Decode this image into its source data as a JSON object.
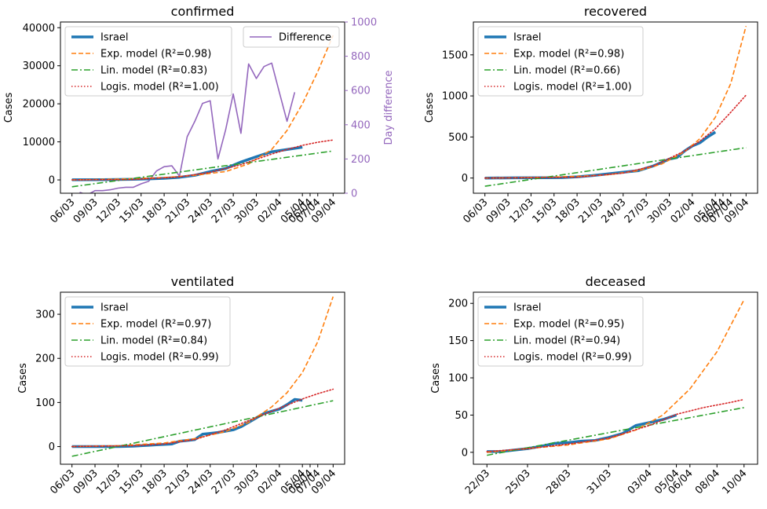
{
  "colors": {
    "israel": "#1f77b4",
    "exp": "#ff7f0e",
    "lin": "#2ca02c",
    "logis": "#d62728",
    "difference": "#9467bd"
  },
  "chart_data": [
    {
      "type": "line",
      "title": "confirmed",
      "xlabel": "",
      "ylabel": "Cases",
      "y2label": "Day difference",
      "xlim": [
        -1.5,
        35.5
      ],
      "ylim": [
        -3500,
        41500
      ],
      "y2lim": [
        0,
        1000
      ],
      "yticks": [
        0,
        10000,
        20000,
        30000,
        40000
      ],
      "y2ticks": [
        0,
        200,
        400,
        600,
        800,
        1000
      ],
      "xticks": [
        {
          "x": 0,
          "label": "06/03"
        },
        {
          "x": 3,
          "label": "09/03"
        },
        {
          "x": 6,
          "label": "12/03"
        },
        {
          "x": 9,
          "label": "15/03"
        },
        {
          "x": 12,
          "label": "18/03"
        },
        {
          "x": 15,
          "label": "21/03"
        },
        {
          "x": 18,
          "label": "24/03"
        },
        {
          "x": 21,
          "label": "27/03"
        },
        {
          "x": 24,
          "label": "30/03"
        },
        {
          "x": 27,
          "label": "02/04"
        },
        {
          "x": 30,
          "label": "05/04"
        },
        {
          "x": 31,
          "label": "06/04"
        },
        {
          "x": 32,
          "label": "07/04"
        },
        {
          "x": 34,
          "label": "09/04"
        }
      ],
      "legend_entries": [
        {
          "label": "Israel",
          "style": "israel"
        },
        {
          "label": "Exp. model (R²=0.98)",
          "style": "exp"
        },
        {
          "label": "Lin. model (R²=0.83)",
          "style": "lin"
        },
        {
          "label": "Logis. model (R²=1.00)",
          "style": "logis"
        }
      ],
      "legend_placement": "top-left",
      "legend2_entries": [
        {
          "label": "Difference",
          "style": "difference"
        }
      ],
      "legend2_placement": "top-right",
      "series": [
        {
          "name": "Israel",
          "style": "israel",
          "x": [
            0,
            4,
            8,
            10,
            12,
            14,
            16,
            18,
            20,
            22,
            24,
            26,
            28,
            30
          ],
          "y": [
            20,
            60,
            150,
            250,
            430,
            700,
            1200,
            2200,
            3000,
            4700,
            6100,
            7400,
            8000,
            8600
          ]
        },
        {
          "name": "Exp. model (R²=0.98)",
          "style": "exp",
          "x": [
            0,
            6,
            12,
            16,
            20,
            23,
            26,
            28,
            30,
            32,
            34
          ],
          "y": [
            0,
            200,
            600,
            1200,
            2200,
            4200,
            8000,
            13000,
            20000,
            28500,
            38000
          ]
        },
        {
          "name": "Lin. model (R²=0.83)",
          "style": "lin",
          "x": [
            0,
            34
          ],
          "y": [
            -1800,
            7600
          ]
        },
        {
          "name": "Logis. model (R²=1.00)",
          "style": "logis",
          "x": [
            0,
            8,
            14,
            18,
            22,
            26,
            28,
            30,
            32,
            34
          ],
          "y": [
            0,
            100,
            800,
            2000,
            4000,
            6800,
            8000,
            9100,
            9900,
            10500
          ]
        },
        {
          "name": "Difference",
          "style": "difference",
          "axis": "y2",
          "x": [
            1,
            2,
            3,
            4,
            5,
            6,
            7,
            8,
            9,
            10,
            11,
            12,
            13,
            14,
            15,
            16,
            17,
            18,
            19,
            20,
            21,
            22,
            23,
            24,
            25,
            26,
            27,
            28,
            29
          ],
          "y": [
            5,
            -10,
            15,
            15,
            20,
            30,
            35,
            35,
            55,
            70,
            130,
            155,
            160,
            100,
            330,
            420,
            525,
            540,
            200,
            370,
            580,
            350,
            755,
            670,
            740,
            760,
            590,
            420,
            590
          ]
        }
      ]
    },
    {
      "type": "line",
      "title": "recovered",
      "xlabel": "",
      "ylabel": "Cases",
      "xlim": [
        -1.5,
        35.5
      ],
      "ylim": [
        -185,
        1900
      ],
      "yticks": [
        0,
        500,
        1000,
        1500
      ],
      "xticks": [
        {
          "x": 0,
          "label": "06/03"
        },
        {
          "x": 3,
          "label": "09/03"
        },
        {
          "x": 6,
          "label": "12/03"
        },
        {
          "x": 9,
          "label": "15/03"
        },
        {
          "x": 12,
          "label": "18/03"
        },
        {
          "x": 15,
          "label": "21/03"
        },
        {
          "x": 18,
          "label": "24/03"
        },
        {
          "x": 21,
          "label": "27/03"
        },
        {
          "x": 24,
          "label": "30/03"
        },
        {
          "x": 27,
          "label": "02/04"
        },
        {
          "x": 30,
          "label": "05/04"
        },
        {
          "x": 31,
          "label": "06/04"
        },
        {
          "x": 32,
          "label": "07/04"
        },
        {
          "x": 34,
          "label": "09/04"
        }
      ],
      "legend_entries": [
        {
          "label": "Israel",
          "style": "israel"
        },
        {
          "label": "Exp. model (R²=0.98)",
          "style": "exp"
        },
        {
          "label": "Lin. model (R²=0.66)",
          "style": "lin"
        },
        {
          "label": "Logis. model (R²=1.00)",
          "style": "logis"
        }
      ],
      "legend_placement": "top-left",
      "series": [
        {
          "name": "Israel",
          "style": "israel",
          "x": [
            0,
            4,
            8,
            10,
            12,
            14,
            16,
            18,
            20,
            22,
            24,
            25,
            26,
            27,
            28,
            29,
            30
          ],
          "y": [
            0,
            2,
            3,
            5,
            15,
            30,
            50,
            70,
            90,
            150,
            230,
            250,
            330,
            390,
            430,
            500,
            560
          ]
        },
        {
          "name": "Exp. model (R²=0.98)",
          "style": "exp",
          "x": [
            0,
            6,
            12,
            16,
            20,
            23,
            26,
            28,
            30,
            32,
            34
          ],
          "y": [
            0,
            5,
            20,
            40,
            90,
            170,
            320,
            480,
            740,
            1150,
            1850
          ]
        },
        {
          "name": "Lin. model (R²=0.66)",
          "style": "lin",
          "x": [
            0,
            34
          ],
          "y": [
            -100,
            370
          ]
        },
        {
          "name": "Logis. model (R²=1.00)",
          "style": "logis",
          "x": [
            0,
            12,
            18,
            22,
            26,
            28,
            30,
            32,
            34
          ],
          "y": [
            0,
            10,
            60,
            150,
            330,
            450,
            600,
            800,
            1010
          ]
        }
      ]
    },
    {
      "type": "line",
      "title": "ventilated",
      "xlabel": "",
      "ylabel": "Cases",
      "xlim": [
        -1.5,
        35.5
      ],
      "ylim": [
        -40,
        350
      ],
      "yticks": [
        0,
        100,
        200,
        300
      ],
      "xticks": [
        {
          "x": 0,
          "label": "06/03"
        },
        {
          "x": 3,
          "label": "09/03"
        },
        {
          "x": 6,
          "label": "12/03"
        },
        {
          "x": 9,
          "label": "15/03"
        },
        {
          "x": 12,
          "label": "18/03"
        },
        {
          "x": 15,
          "label": "21/03"
        },
        {
          "x": 18,
          "label": "24/03"
        },
        {
          "x": 21,
          "label": "27/03"
        },
        {
          "x": 24,
          "label": "30/03"
        },
        {
          "x": 27,
          "label": "02/04"
        },
        {
          "x": 30,
          "label": "05/04"
        },
        {
          "x": 31,
          "label": "06/04"
        },
        {
          "x": 32,
          "label": "07/04"
        },
        {
          "x": 34,
          "label": "09/04"
        }
      ],
      "legend_entries": [
        {
          "label": "Israel",
          "style": "israel"
        },
        {
          "label": "Exp. model (R²=0.97)",
          "style": "exp"
        },
        {
          "label": "Lin. model (R²=0.84)",
          "style": "lin"
        },
        {
          "label": "Logis. model (R²=0.99)",
          "style": "logis"
        }
      ],
      "legend_placement": "top-left",
      "series": [
        {
          "name": "Israel",
          "style": "israel",
          "x": [
            0,
            2,
            4,
            6,
            8,
            9,
            10,
            11,
            12,
            13,
            14,
            15,
            16,
            17,
            18,
            19,
            20,
            21,
            22,
            23,
            24,
            25,
            26,
            27,
            28,
            29,
            30
          ],
          "y": [
            0,
            0,
            0,
            0,
            1,
            2,
            3,
            4,
            5,
            6,
            12,
            14,
            16,
            28,
            30,
            32,
            35,
            38,
            45,
            55,
            65,
            75,
            80,
            85,
            95,
            107,
            105
          ]
        },
        {
          "name": "Exp. model (R²=0.97)",
          "style": "exp",
          "x": [
            0,
            6,
            12,
            16,
            20,
            23,
            26,
            28,
            30,
            32,
            34
          ],
          "y": [
            0,
            2,
            8,
            18,
            34,
            55,
            90,
            122,
            168,
            238,
            340
          ]
        },
        {
          "name": "Lin. model (R²=0.84)",
          "style": "lin",
          "x": [
            0,
            34
          ],
          "y": [
            -22,
            104
          ]
        },
        {
          "name": "Logis. model (R²=0.99)",
          "style": "logis",
          "x": [
            0,
            8,
            12,
            16,
            20,
            24,
            28,
            30,
            32,
            34
          ],
          "y": [
            0,
            2,
            6,
            16,
            38,
            66,
            94,
            108,
            120,
            130
          ]
        }
      ]
    },
    {
      "type": "line",
      "title": "deceased",
      "xlabel": "",
      "ylabel": "Cases",
      "xlim": [
        -1,
        20
      ],
      "ylim": [
        -16,
        215
      ],
      "yticks": [
        0,
        50,
        100,
        150,
        200
      ],
      "xticks": [
        {
          "x": 0,
          "label": "22/03"
        },
        {
          "x": 3,
          "label": "25/03"
        },
        {
          "x": 6,
          "label": "28/03"
        },
        {
          "x": 9,
          "label": "31/03"
        },
        {
          "x": 12,
          "label": "03/04"
        },
        {
          "x": 14,
          "label": "05/04"
        },
        {
          "x": 15,
          "label": "06/04"
        },
        {
          "x": 17,
          "label": "08/04"
        },
        {
          "x": 19,
          "label": "10/04"
        }
      ],
      "legend_entries": [
        {
          "label": "Israel",
          "style": "israel"
        },
        {
          "label": "Exp. model (R²=0.95)",
          "style": "exp"
        },
        {
          "label": "Lin. model (R²=0.94)",
          "style": "lin"
        },
        {
          "label": "Logis. model (R²=0.99)",
          "style": "logis"
        }
      ],
      "legend_placement": "top-left",
      "series": [
        {
          "name": "Israel",
          "style": "israel",
          "x": [
            0,
            1,
            2,
            3,
            4,
            5,
            6,
            7,
            8,
            9,
            10,
            11,
            12,
            13,
            14
          ],
          "y": [
            1,
            1,
            3,
            5,
            8,
            12,
            13,
            15,
            16,
            20,
            25,
            36,
            40,
            44,
            50
          ]
        },
        {
          "name": "Exp. model (R²=0.95)",
          "style": "exp",
          "x": [
            0,
            3,
            6,
            9,
            11,
            13,
            15,
            17,
            19
          ],
          "y": [
            0,
            5,
            10,
            18,
            30,
            50,
            85,
            135,
            205
          ]
        },
        {
          "name": "Lin. model (R²=0.94)",
          "style": "lin",
          "x": [
            0,
            19
          ],
          "y": [
            -4,
            60
          ]
        },
        {
          "name": "Logis. model (R²=0.99)",
          "style": "logis",
          "x": [
            0,
            3,
            6,
            9,
            12,
            14,
            16,
            18,
            19
          ],
          "y": [
            1,
            5,
            11,
            19,
            36,
            51,
            60,
            67,
            71
          ]
        }
      ]
    }
  ]
}
